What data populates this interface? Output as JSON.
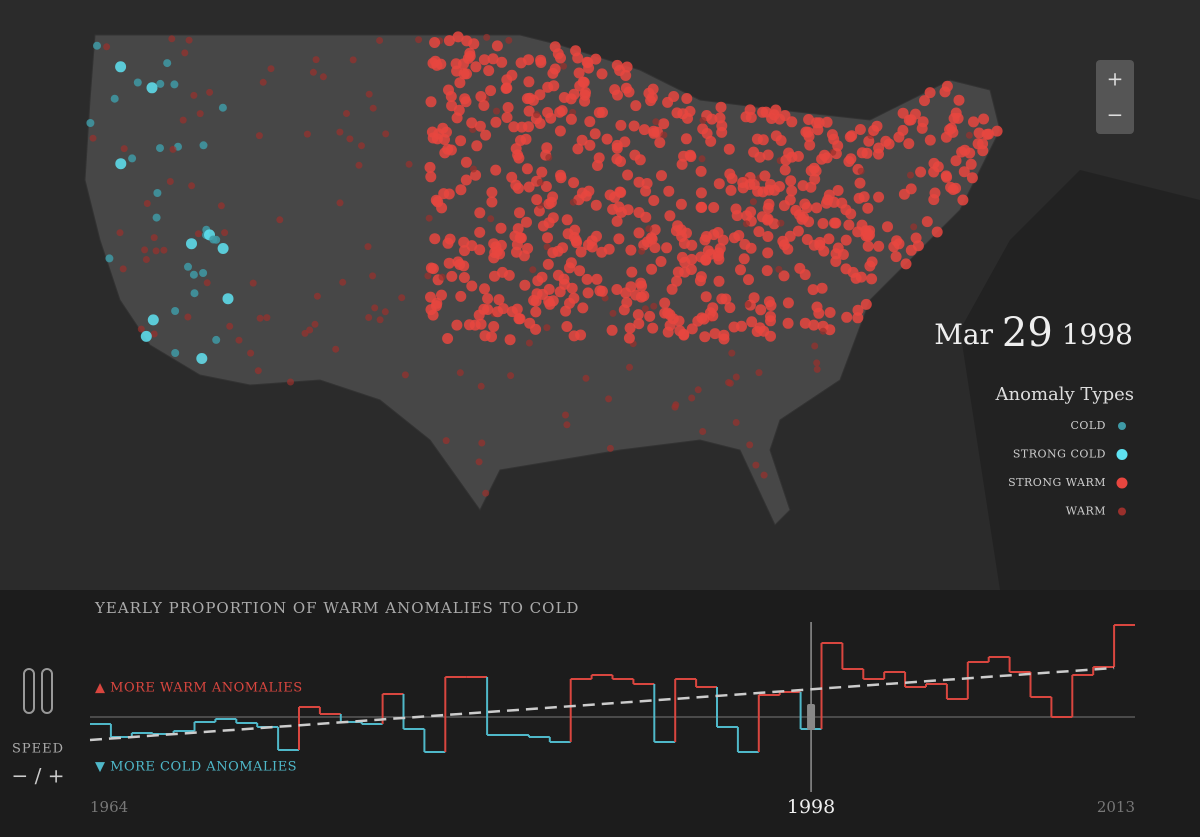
{
  "date": {
    "month": "Mar",
    "day": "29",
    "year": "1998"
  },
  "zoom": {
    "in": "+",
    "out": "−"
  },
  "legend": {
    "title": "Anomaly Types",
    "items": [
      {
        "label": "COLD",
        "color": "#3f9aa6"
      },
      {
        "label": "STRONG COLD",
        "color": "#5fe3f2"
      },
      {
        "label": "STRONG WARM",
        "color": "#e8463f"
      },
      {
        "label": "WARM",
        "color": "#9a302c"
      }
    ]
  },
  "controls": {
    "speed": "SPEED",
    "speed_control": "− / +"
  },
  "chart_data": {
    "type": "step",
    "title": "YEARLY PROPORTION OF WARM ANOMALIES TO COLD",
    "warm_label": "▲ MORE WARM ANOMALIES",
    "cold_label": "▼ MORE COLD ANOMALIES",
    "warm_color": "#d9463f",
    "cold_color": "#4fb8c9",
    "x": [
      1964,
      1965,
      1966,
      1967,
      1968,
      1969,
      1970,
      1971,
      1972,
      1973,
      1974,
      1975,
      1976,
      1977,
      1978,
      1979,
      1980,
      1981,
      1982,
      1983,
      1984,
      1985,
      1986,
      1987,
      1988,
      1989,
      1990,
      1991,
      1992,
      1993,
      1994,
      1995,
      1996,
      1997,
      1998,
      1999,
      2000,
      2001,
      2002,
      2003,
      2004,
      2005,
      2006,
      2007,
      2008,
      2009,
      2010,
      2011,
      2012,
      2013
    ],
    "values": [
      -0.07,
      -0.2,
      -0.16,
      -0.17,
      -0.14,
      -0.05,
      -0.02,
      -0.06,
      -0.1,
      -0.33,
      0.1,
      0.03,
      -0.05,
      -0.07,
      0.23,
      -0.12,
      -0.35,
      0.4,
      0.4,
      -0.18,
      -0.18,
      -0.2,
      -0.25,
      0.38,
      0.42,
      0.38,
      0.33,
      -0.25,
      0.38,
      0.3,
      -0.1,
      -0.35,
      0.22,
      0.25,
      -0.12,
      0.74,
      0.48,
      0.38,
      0.45,
      0.3,
      0.33,
      0.18,
      0.55,
      0.6,
      0.45,
      0.2,
      0,
      0.42,
      0.5,
      0.92
    ],
    "trend": [
      -0.23,
      0.49
    ],
    "xlim": [
      1964,
      2014
    ],
    "ylim": [
      -0.43,
      0.97
    ],
    "xticks": [
      1964,
      1998,
      2013
    ]
  }
}
